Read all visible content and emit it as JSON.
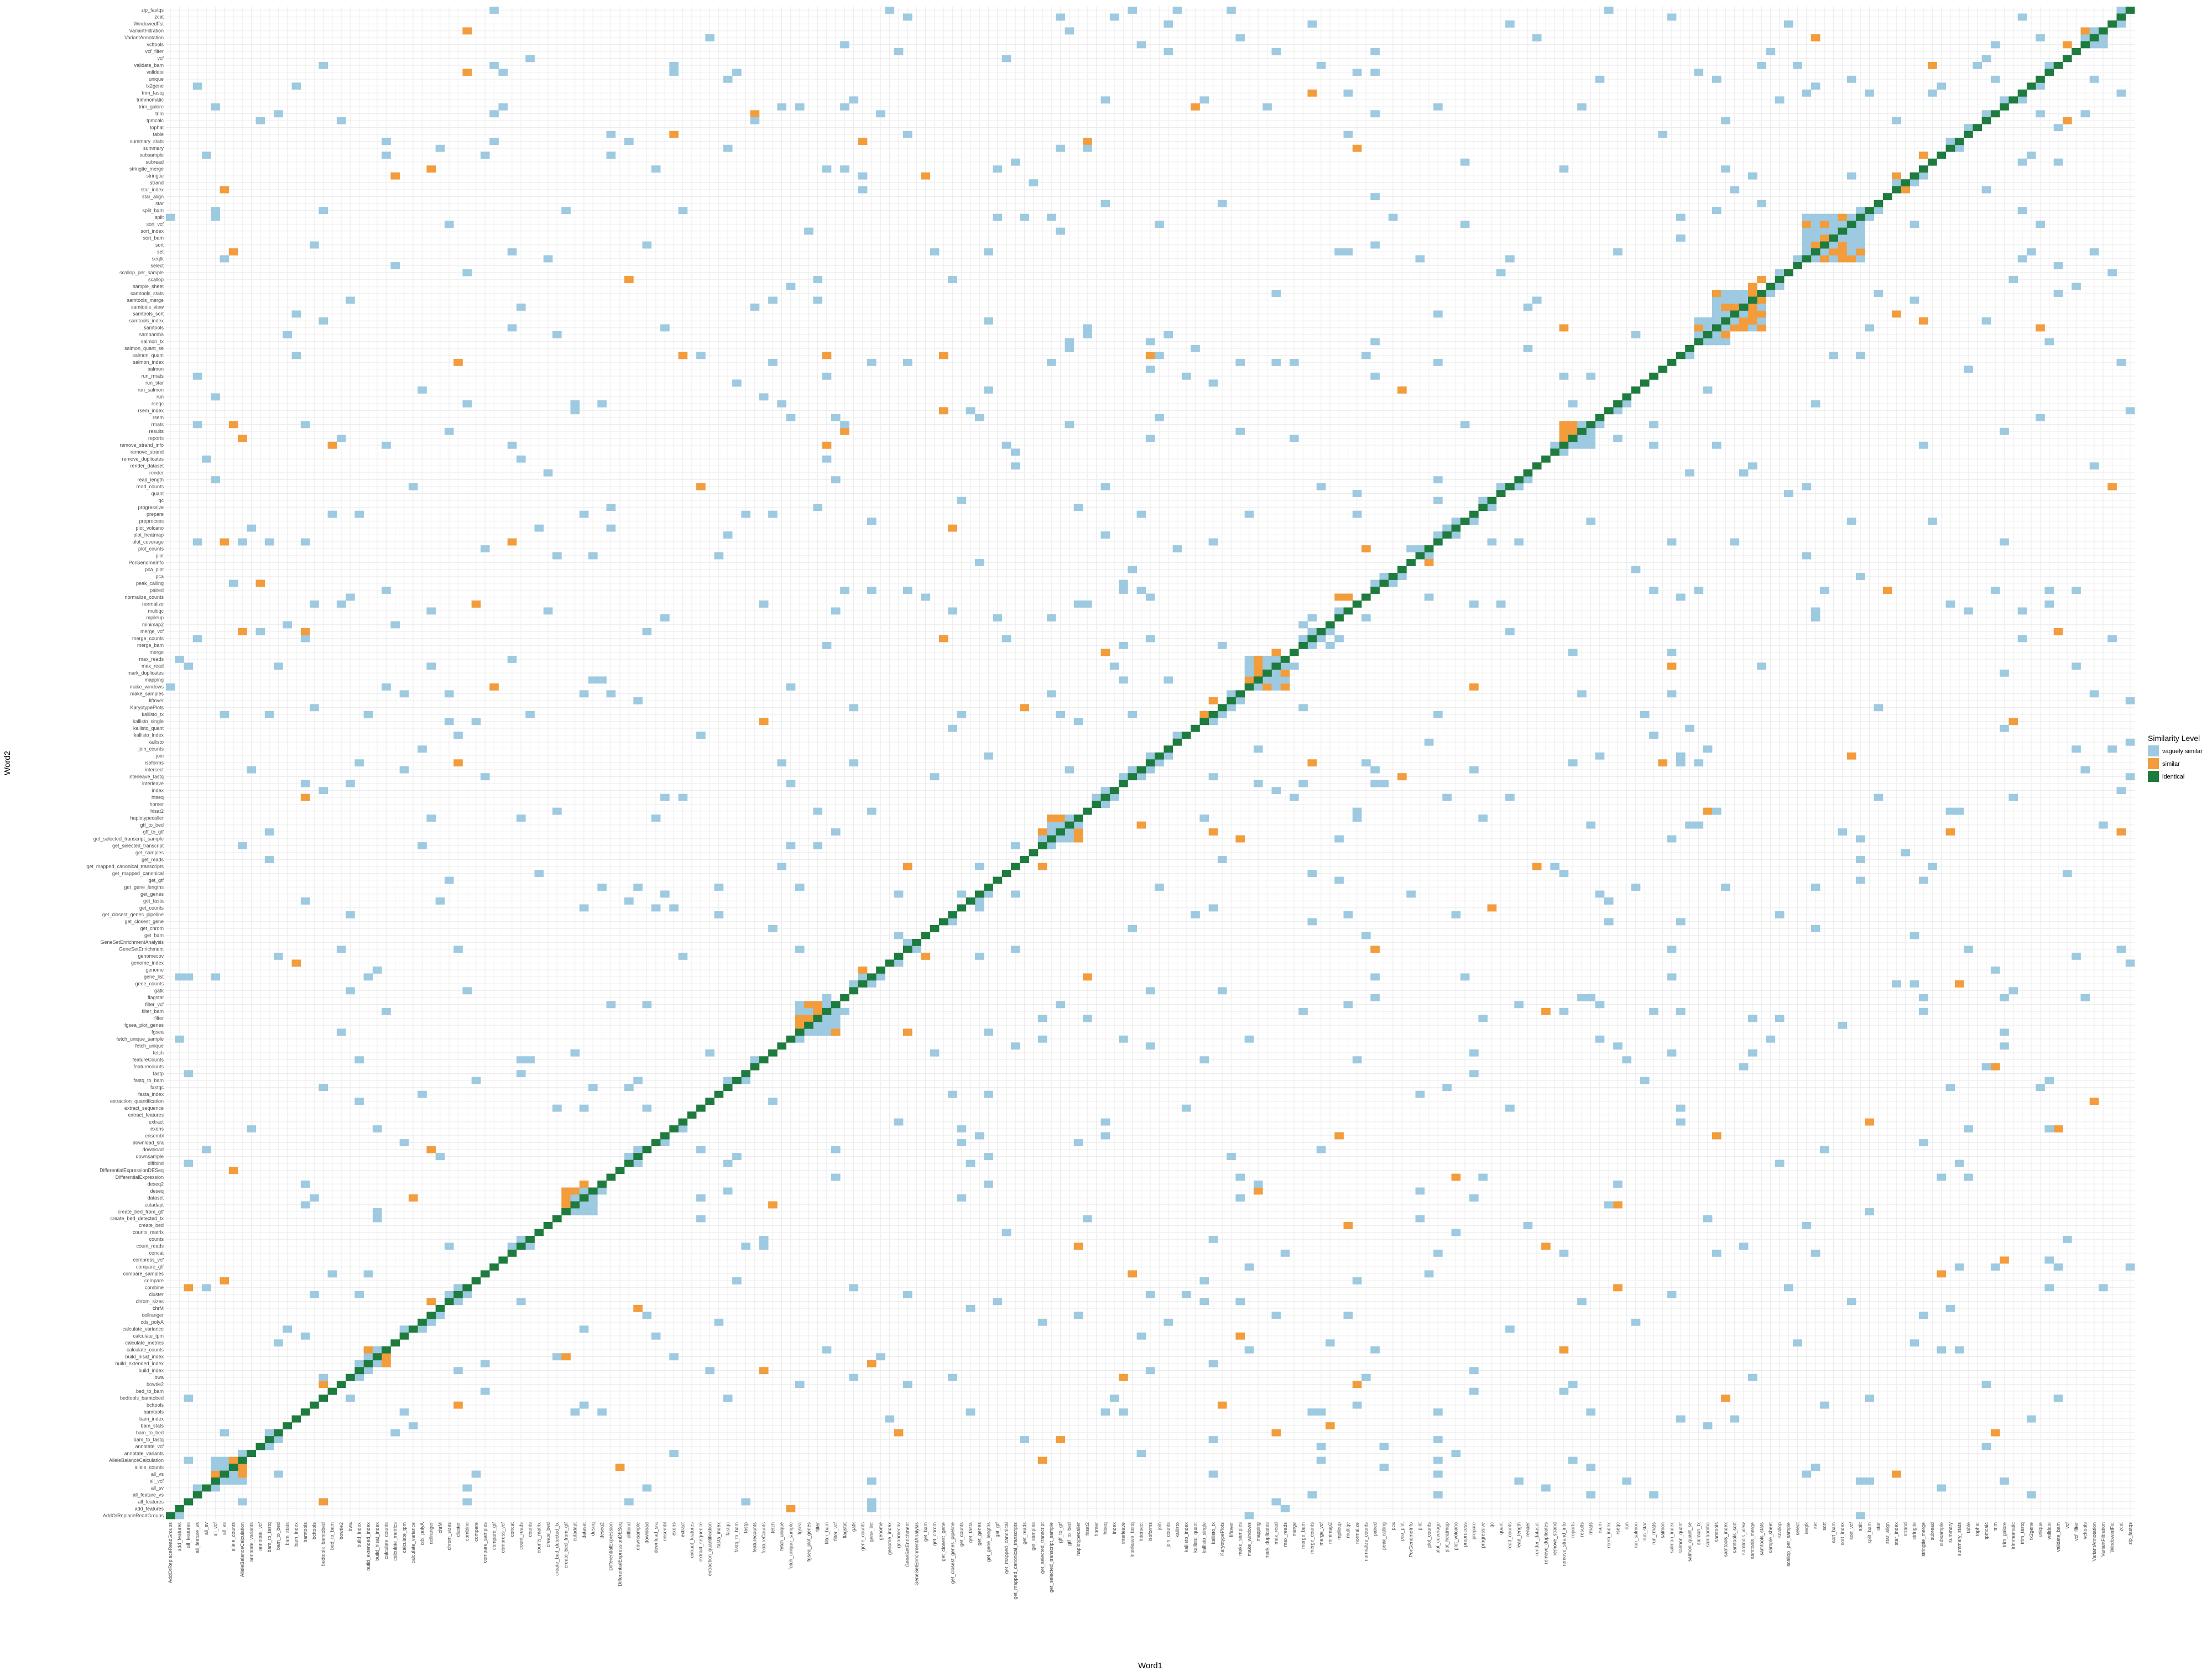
{
  "chart_data": {
    "type": "heatmap",
    "title": "",
    "xlabel": "Word1",
    "ylabel": "Word2",
    "legend": {
      "title": "Similarity Level",
      "position": "right",
      "entries": [
        {
          "label": "vaguely similar",
          "color": "#9ecae1"
        },
        {
          "label": "similar",
          "color": "#f39c3c"
        },
        {
          "label": "identical",
          "color": "#1e7b3e"
        }
      ]
    },
    "grid": true,
    "words": [
      "AddOrReplaceReadGroups",
      "add_features",
      "all_features",
      "all_feature_vs",
      "all_sv",
      "all_vcf",
      "all_vs",
      "allele_counts",
      "AlleleBalanceCalculation",
      "annotate_variants",
      "annotate_vcf",
      "bam_to_fastq",
      "bam_to_bed",
      "bam_stats",
      "bam_index",
      "bamtools",
      "bcftools",
      "bedtools_bamtobed",
      "bed_to_bam",
      "bowtie2",
      "bwa",
      "build_index",
      "build_extended_index",
      "build_hisat_index",
      "calculate_counts",
      "calculate_metrics",
      "calculate_tpm",
      "calculate_variance",
      "cds_polyA",
      "cellranger",
      "chrM",
      "chrom_sizes",
      "cluster",
      "combine",
      "compare",
      "compare_samples",
      "compare_gtf",
      "compress_vcf",
      "concat",
      "count_reads",
      "counts",
      "counts_matrix",
      "create_bed",
      "create_bed_detected_tx",
      "create_bed_from_gtf",
      "cutadapt",
      "dataset",
      "deseq",
      "deseq2",
      "DifferentialExpression",
      "DifferentialExpressionDESeq",
      "diffbind",
      "downsample",
      "download",
      "download_sra",
      "ensembl",
      "exons",
      "extract",
      "extract_features",
      "extract_sequence",
      "extraction_quantification",
      "fasta_index",
      "fastqc",
      "fastq_to_bam",
      "fastp",
      "featurecounts",
      "featureCounts",
      "fetch",
      "fetch_unique",
      "fetch_unique_sample",
      "fgsea",
      "fgsea_plot_genes",
      "filter",
      "filter_bam",
      "filter_vcf",
      "flagstat",
      "gatk",
      "gene_counts",
      "gene_list",
      "genome",
      "genome_index",
      "genomecov",
      "GeneSetEnrichment",
      "GeneSetEnrichmentAnalysis",
      "get_bam",
      "get_chrom",
      "get_closest_gene",
      "get_closest_genes_pipeline",
      "get_counts",
      "get_fasta",
      "get_genes",
      "get_gene_lengths",
      "get_gtf",
      "get_mapped_canonical",
      "get_mapped_canonical_transcripts",
      "get_reads",
      "get_samples",
      "get_selected_transcript",
      "get_selected_transcript_sample",
      "gff_to_gtf",
      "gtf_to_bed",
      "haplotypecaller",
      "hisat2",
      "homer",
      "htseq",
      "index",
      "interleave",
      "interleave_fastq",
      "intersect",
      "isoforms",
      "join",
      "join_counts",
      "kallisto",
      "kallisto_index",
      "kallisto_quant",
      "kallisto_single",
      "kallisto_tx",
      "KaryotypePlots",
      "liftover",
      "make_samples",
      "make_windows",
      "mapping",
      "mark_duplicates",
      "max_read",
      "max_reads",
      "merge",
      "merge_bam",
      "merge_counts",
      "merge_vcf",
      "minimap2",
      "mpileup",
      "multiqc",
      "normalize",
      "normalize_counts",
      "paired",
      "peak_calling",
      "pca",
      "pca_plot",
      "PorGenomeInfo",
      "plot",
      "plot_counts",
      "plot_coverage",
      "plot_heatmap",
      "plot_volcano",
      "preprocess",
      "prepare",
      "progressive",
      "qc",
      "quant",
      "read_counts",
      "read_length",
      "render",
      "render_dataset",
      "remove_duplicates",
      "remove_strand",
      "remove_strand_info",
      "reports",
      "results",
      "rmats",
      "rsem",
      "rsem_index",
      "rseqc",
      "run",
      "run_salmon",
      "run_star",
      "run_rmats",
      "salmon",
      "salmon_index",
      "salmon_quant",
      "salmon_quant_se",
      "salmon_tx",
      "sambamba",
      "samtools",
      "samtools_index",
      "samtools_sort",
      "samtools_view",
      "samtools_merge",
      "samtools_stats",
      "sample_sheet",
      "scallop",
      "scallop_per_sample",
      "select",
      "seqtk",
      "set",
      "sort",
      "sort_bam",
      "sort_index",
      "sort_vcf",
      "split",
      "split_bam",
      "star",
      "star_align",
      "star_index",
      "strand",
      "stringtie",
      "stringtie_merge",
      "subread",
      "subsample",
      "summary",
      "summary_stats",
      "table",
      "tophat",
      "tpmcalc",
      "trim",
      "trim_galore",
      "trimmomatic",
      "trim_fastq",
      "tx2gene",
      "unique",
      "validate",
      "validate_bam",
      "vcf",
      "vcf_filter",
      "vcftools",
      "VariantAnnotation",
      "VariantFiltration",
      "WindowedFst",
      "zcat",
      "zip_fastqs"
    ]
  }
}
